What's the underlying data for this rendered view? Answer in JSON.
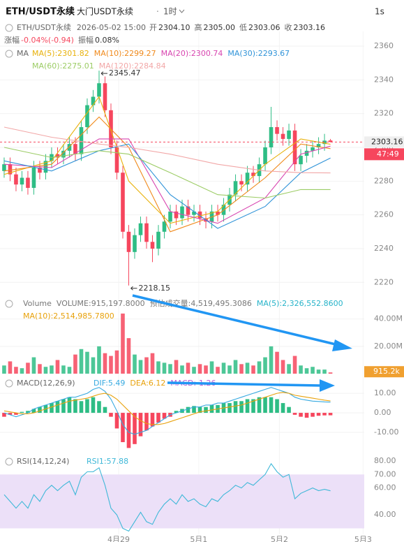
{
  "header": {
    "symbol": "ETH/USDT永续",
    "subtitle": "大门USDT永续",
    "interval": "1时",
    "right": "1s"
  },
  "chart_data": [
    {
      "type": "candlestick",
      "info": {
        "symbol": "ETH/USDT永续",
        "time": "2026-05-02 15:00",
        "fields": [
          {
            "name": "开",
            "value": "2304.10"
          },
          {
            "name": "高",
            "value": "2305.00"
          },
          {
            "name": "低",
            "value": "2303.06"
          },
          {
            "name": "收",
            "value": "2303.16"
          }
        ],
        "change_label": "涨幅",
        "change": "-0.04%(-0.94)",
        "amp_label": "振幅",
        "amp": "0.08%"
      },
      "legend_title": "MA",
      "up_color": "#2ebd85",
      "down_color": "#f6465d",
      "grid": true,
      "xlim": [
        -0.7,
        67.4
      ],
      "ylim": [
        2213.5,
        2368.7
      ],
      "yticks": [
        2220,
        2240,
        2260,
        2280,
        2300,
        2320,
        2340,
        2360
      ],
      "open": [
        2286,
        2290,
        2284,
        2278,
        2282,
        2276,
        2288,
        2285,
        2292,
        2296,
        2294,
        2298,
        2302,
        2296,
        2312,
        2325,
        2330,
        2338,
        2322,
        2300,
        2285,
        2250,
        2238,
        2248,
        2255,
        2244,
        2240,
        2250,
        2256,
        2262,
        2258,
        2265,
        2260,
        2262,
        2258,
        2256,
        2262,
        2260,
        2266,
        2272,
        2280,
        2278,
        2285,
        2283,
        2290,
        2300,
        2312,
        2308,
        2305,
        2310,
        2290,
        2295,
        2298,
        2300,
        2302,
        2304.1
      ],
      "high": [
        2294,
        2294,
        2288,
        2286,
        2286,
        2292,
        2292,
        2296,
        2300,
        2300,
        2302,
        2306,
        2306,
        2316,
        2329,
        2334,
        2345.47,
        2342,
        2326,
        2304,
        2289,
        2254,
        2252,
        2259,
        2259,
        2248,
        2254,
        2260,
        2266,
        2266,
        2269,
        2269,
        2266,
        2266,
        2262,
        2266,
        2266,
        2270,
        2276,
        2284,
        2284,
        2289,
        2289,
        2294,
        2304,
        2324,
        2316,
        2312,
        2314,
        2314,
        2299,
        2302,
        2304,
        2306,
        2308,
        2305.0
      ],
      "low": [
        2282,
        2280,
        2274,
        2274,
        2272,
        2272,
        2281,
        2281,
        2288,
        2290,
        2290,
        2294,
        2292,
        2292,
        2308,
        2321,
        2326,
        2318,
        2296,
        2281,
        2246,
        2218.15,
        2234,
        2244,
        2240,
        2232,
        2236,
        2246,
        2252,
        2254,
        2254,
        2256,
        2256,
        2254,
        2252,
        2252,
        2256,
        2256,
        2262,
        2268,
        2274,
        2274,
        2279,
        2279,
        2286,
        2296,
        2304,
        2301,
        2301,
        2286,
        2286,
        2291,
        2294,
        2296,
        2298,
        2303.06
      ],
      "close": [
        2290,
        2284,
        2278,
        2282,
        2276,
        2288,
        2285,
        2292,
        2296,
        2294,
        2298,
        2302,
        2296,
        2312,
        2325,
        2330,
        2338,
        2322,
        2300,
        2285,
        2250,
        2238,
        2248,
        2255,
        2244,
        2240,
        2250,
        2256,
        2262,
        2258,
        2265,
        2260,
        2262,
        2258,
        2256,
        2262,
        2260,
        2266,
        2272,
        2280,
        2278,
        2285,
        2283,
        2290,
        2300,
        2312,
        2308,
        2305,
        2310,
        2290,
        2295,
        2298,
        2300,
        2302,
        2304,
        2303.16
      ],
      "series": [
        {
          "name": "MA(5)",
          "label": "MA(5):2301.82",
          "color": "#e8b10a",
          "x": [
            0,
            8,
            16,
            21,
            28,
            36,
            44,
            50,
            55
          ],
          "values": [
            2284,
            2292,
            2330,
            2280,
            2255,
            2262,
            2290,
            2305,
            2301.82
          ]
        },
        {
          "name": "MA(10)",
          "label": "MA(10):2299.27",
          "color": "#f08a1c",
          "x": [
            0,
            8,
            16,
            21,
            28,
            36,
            44,
            50,
            55
          ],
          "values": [
            2286,
            2290,
            2318,
            2300,
            2250,
            2260,
            2282,
            2302,
            2299.27
          ]
        },
        {
          "name": "MA(20)",
          "label": "MA(20):2300.74",
          "color": "#d845b0",
          "x": [
            0,
            8,
            16,
            21,
            28,
            36,
            44,
            50,
            55
          ],
          "values": [
            2290,
            2288,
            2305,
            2305,
            2262,
            2255,
            2270,
            2296,
            2300.74
          ]
        },
        {
          "name": "MA(30)",
          "label": "MA(30):2293.67",
          "color": "#2f93d8",
          "x": [
            0,
            8,
            16,
            21,
            28,
            36,
            44,
            50,
            55
          ],
          "values": [
            2292,
            2286,
            2298,
            2302,
            2272,
            2252,
            2265,
            2285,
            2293.67
          ]
        },
        {
          "name": "MA(60)",
          "label": "MA(60):2275.01",
          "color": "#9ccc65",
          "x": [
            0,
            8,
            16,
            21,
            28,
            36,
            44,
            50,
            55
          ],
          "values": [
            2300,
            2294,
            2298,
            2296,
            2285,
            2272,
            2270,
            2275,
            2275.01
          ]
        },
        {
          "name": "MA(120)",
          "label": "MA(120):2284.84",
          "color": "#f2a7a7",
          "x": [
            0,
            8,
            16,
            21,
            28,
            36,
            44,
            50,
            55
          ],
          "values": [
            2312,
            2306,
            2302,
            2300,
            2296,
            2290,
            2286,
            2285,
            2284.84
          ]
        }
      ],
      "annotations": [
        {
          "text": "2345.47",
          "index": 16
        },
        {
          "text": "2218.15",
          "index": 21
        }
      ],
      "last_price_label": "2303.16",
      "countdown": "47:49"
    },
    {
      "type": "volume",
      "legend": [
        {
          "text": "Volume",
          "color": "#777"
        },
        {
          "text": "VOLUME:915,197.8000",
          "color": "#777"
        },
        {
          "text": "预估成交量:4,519,495.3086",
          "color": "#777"
        },
        {
          "text": "MA(5):2,326,552.8600",
          "color": "#26b3c9"
        },
        {
          "text": "MA(10):2,514,985.7800",
          "color": "#e8a10a"
        }
      ],
      "xlim": [
        -0.7,
        67.4
      ],
      "ylim": [
        0,
        46000000
      ],
      "yticks": [
        {
          "value": 40000000,
          "label": "40.00M"
        },
        {
          "value": 20000000,
          "label": "20.00M"
        }
      ],
      "grid": true,
      "values": [
        6000000,
        9000000,
        5000000,
        4000000,
        8000000,
        12000000,
        7000000,
        5000000,
        6000000,
        10000000,
        6000000,
        5000000,
        14000000,
        18000000,
        16000000,
        12000000,
        20000000,
        15000000,
        13000000,
        17000000,
        44000000,
        26000000,
        14000000,
        10000000,
        12000000,
        15000000,
        9000000,
        8000000,
        7000000,
        10000000,
        6000000,
        8000000,
        5000000,
        7000000,
        6000000,
        9000000,
        5000000,
        8000000,
        6000000,
        10000000,
        7000000,
        8000000,
        6000000,
        9000000,
        12000000,
        20000000,
        16000000,
        10000000,
        7000000,
        13000000,
        6000000,
        4000000,
        5000000,
        3000000,
        3000000,
        915197.8
      ],
      "last_label": "915.2k"
    },
    {
      "type": "macd",
      "title": "MACD(12,26,9)",
      "xlim": [
        -0.7,
        67.4
      ],
      "ylim": [
        -20,
        15.4
      ],
      "yticks": [
        {
          "value": 10,
          "label": "10.00"
        },
        {
          "value": 0,
          "label": "0.00"
        },
        {
          "value": -10,
          "label": "-10.00"
        }
      ],
      "grid": true,
      "up_color": "#2ebd85",
      "down_color": "#f6465d",
      "histogram": {
        "name": "MACD:-1.26",
        "color": "#b55ad6",
        "values": [
          -2,
          -1,
          -1,
          0.5,
          1,
          2,
          3,
          4,
          5,
          6,
          7,
          8,
          7,
          6,
          7,
          8,
          6,
          3,
          -2,
          -8,
          -15,
          -18,
          -16,
          -12,
          -9,
          -7,
          -5,
          -3,
          -2,
          1,
          2,
          3,
          3.5,
          3,
          3,
          4,
          4,
          5,
          5,
          6,
          6,
          7,
          7,
          8,
          8,
          8,
          7,
          5,
          3,
          -1,
          -2,
          -2.5,
          -2,
          -1.5,
          -1.3,
          -1.26
        ]
      },
      "series": [
        {
          "name": "DIF:5.49",
          "color": "#36a9e0",
          "values": [
            0,
            -1,
            -2,
            -1,
            0,
            2,
            3,
            4,
            5,
            6,
            7,
            8,
            8,
            9,
            10,
            12,
            13,
            11,
            7,
            1,
            -6,
            -10,
            -11,
            -10,
            -9,
            -7,
            -5,
            -3,
            -1,
            0,
            1,
            2,
            3,
            3,
            4,
            4,
            5,
            5,
            6,
            7,
            8,
            9,
            10,
            11,
            12,
            13,
            12,
            11,
            10,
            8,
            7,
            6.5,
            6,
            5.8,
            5.6,
            5.49
          ]
        },
        {
          "name": "DEA:6.12",
          "color": "#e8a10a",
          "values": [
            1,
            0.5,
            0,
            -0.5,
            -0.5,
            0,
            1,
            2,
            3,
            4,
            5,
            6,
            6.5,
            7,
            7.5,
            8.5,
            9.5,
            10,
            9,
            7,
            4,
            1,
            -2,
            -4,
            -5.5,
            -6,
            -6,
            -5.5,
            -4.5,
            -3.5,
            -2.5,
            -1.5,
            -0.5,
            0.5,
            1,
            1.5,
            2,
            2.5,
            3,
            3.5,
            4,
            5,
            6,
            7,
            8,
            9,
            10,
            10.5,
            10,
            9,
            8.5,
            8,
            7.5,
            7,
            6.5,
            6.12
          ]
        }
      ]
    },
    {
      "type": "rsi",
      "title": "RSI(14,12,24)",
      "xlim": [
        -0.7,
        67.4
      ],
      "ylim": [
        25.6,
        85.2
      ],
      "yticks": [
        {
          "value": 80,
          "label": "80.00"
        },
        {
          "value": 70,
          "label": "70.00"
        },
        {
          "value": 60,
          "label": "60.00"
        },
        {
          "value": 40,
          "label": "40.00"
        }
      ],
      "band": [
        30,
        70
      ],
      "band_color": "#ece0f8",
      "xticks": [
        {
          "value": 19.3,
          "label": "4月29"
        },
        {
          "value": 32.8,
          "label": "5月1"
        },
        {
          "value": 46.4,
          "label": "5月2"
        },
        {
          "value": 60.5,
          "label": "5月3"
        }
      ],
      "series": [
        {
          "name": "RSI1:57.88",
          "color": "#3fb8d8",
          "values": [
            55,
            50,
            45,
            50,
            45,
            55,
            50,
            58,
            62,
            58,
            62,
            65,
            55,
            68,
            72,
            72,
            75,
            62,
            45,
            40,
            30,
            28,
            35,
            42,
            35,
            33,
            42,
            48,
            52,
            48,
            55,
            50,
            52,
            48,
            46,
            52,
            50,
            55,
            58,
            62,
            60,
            64,
            62,
            66,
            70,
            78,
            72,
            68,
            70,
            52,
            56,
            58,
            60,
            58,
            59,
            57.88
          ]
        }
      ]
    }
  ]
}
